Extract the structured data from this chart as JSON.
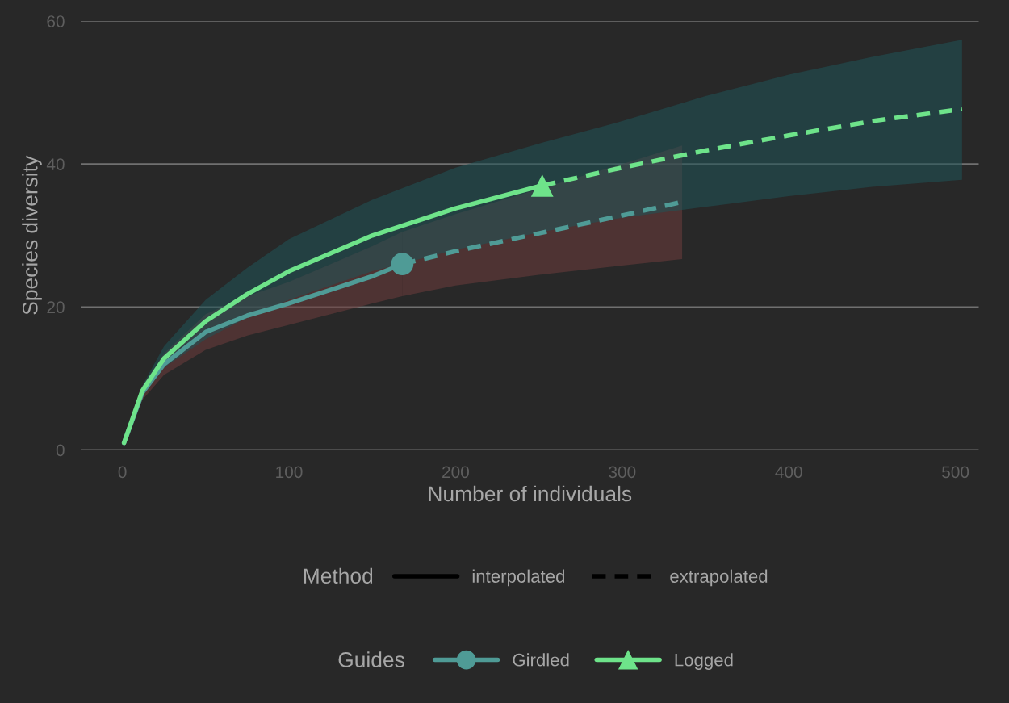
{
  "chart_data": {
    "type": "line",
    "xlabel": "Number of individuals",
    "ylabel": "Species diversity",
    "xlim": [
      -25,
      514
    ],
    "ylim": [
      0,
      60
    ],
    "xticks": [
      0,
      100,
      200,
      300,
      400,
      500
    ],
    "yticks": [
      0,
      20,
      40,
      60
    ],
    "grid": "y",
    "legend": "bottom",
    "legend_title": "Guides",
    "annotations": [
      "Method",
      "interpolated",
      "extrapolated"
    ],
    "series": [
      {
        "name": "Girdled",
        "color": "#4f9b96",
        "line_style": "solid",
        "x": [
          1,
          12,
          25,
          50,
          75,
          100,
          125,
          150,
          168
        ],
        "values": [
          1,
          8,
          12,
          16.5,
          18.8,
          20.5,
          22.4,
          24.3,
          26
        ],
        "lower": [
          1,
          7,
          10.5,
          14,
          16,
          17.5,
          19,
          20.5,
          21.5
        ],
        "upper": [
          1,
          9,
          13.5,
          19,
          21.5,
          23.5,
          26,
          28.5,
          30.5
        ]
      },
      {
        "color": "#4f9b96",
        "line_style": "dashed",
        "x": [
          168,
          200,
          250,
          300,
          336
        ],
        "values": [
          26,
          27.8,
          30.3,
          32.8,
          34.7
        ],
        "lower": [
          21.5,
          23,
          24.5,
          25.8,
          26.7
        ],
        "upper": [
          30.5,
          33,
          36.5,
          40,
          42.6
        ]
      },
      {
        "type": "scatter",
        "color": "#4f9b96",
        "marker": "circle",
        "x": [
          168
        ],
        "values": [
          26
        ]
      },
      {
        "name": "Logged",
        "color": "#6ee38a",
        "line_style": "solid",
        "x": [
          1,
          12,
          25,
          50,
          75,
          100,
          150,
          200,
          252
        ],
        "values": [
          1,
          8.3,
          12.8,
          18,
          21.8,
          25,
          30,
          33.8,
          37
        ],
        "lower": [
          1,
          7.5,
          11.5,
          15.5,
          18.5,
          21,
          25,
          28,
          30.5
        ],
        "upper": [
          1,
          9,
          14.5,
          21,
          25.5,
          29.5,
          35,
          39.5,
          43
        ]
      },
      {
        "color": "#6ee38a",
        "line_style": "dashed",
        "x": [
          252,
          300,
          350,
          400,
          450,
          504
        ],
        "values": [
          37,
          39.5,
          41.9,
          44,
          46,
          47.7
        ],
        "lower": [
          30.5,
          32.5,
          34,
          35.5,
          36.8,
          37.8
        ],
        "upper": [
          43,
          46,
          49.5,
          52.5,
          55,
          57.4
        ]
      },
      {
        "type": "scatter",
        "color": "#6ee38a",
        "marker": "triangle",
        "x": [
          252
        ],
        "values": [
          37
        ]
      }
    ]
  }
}
